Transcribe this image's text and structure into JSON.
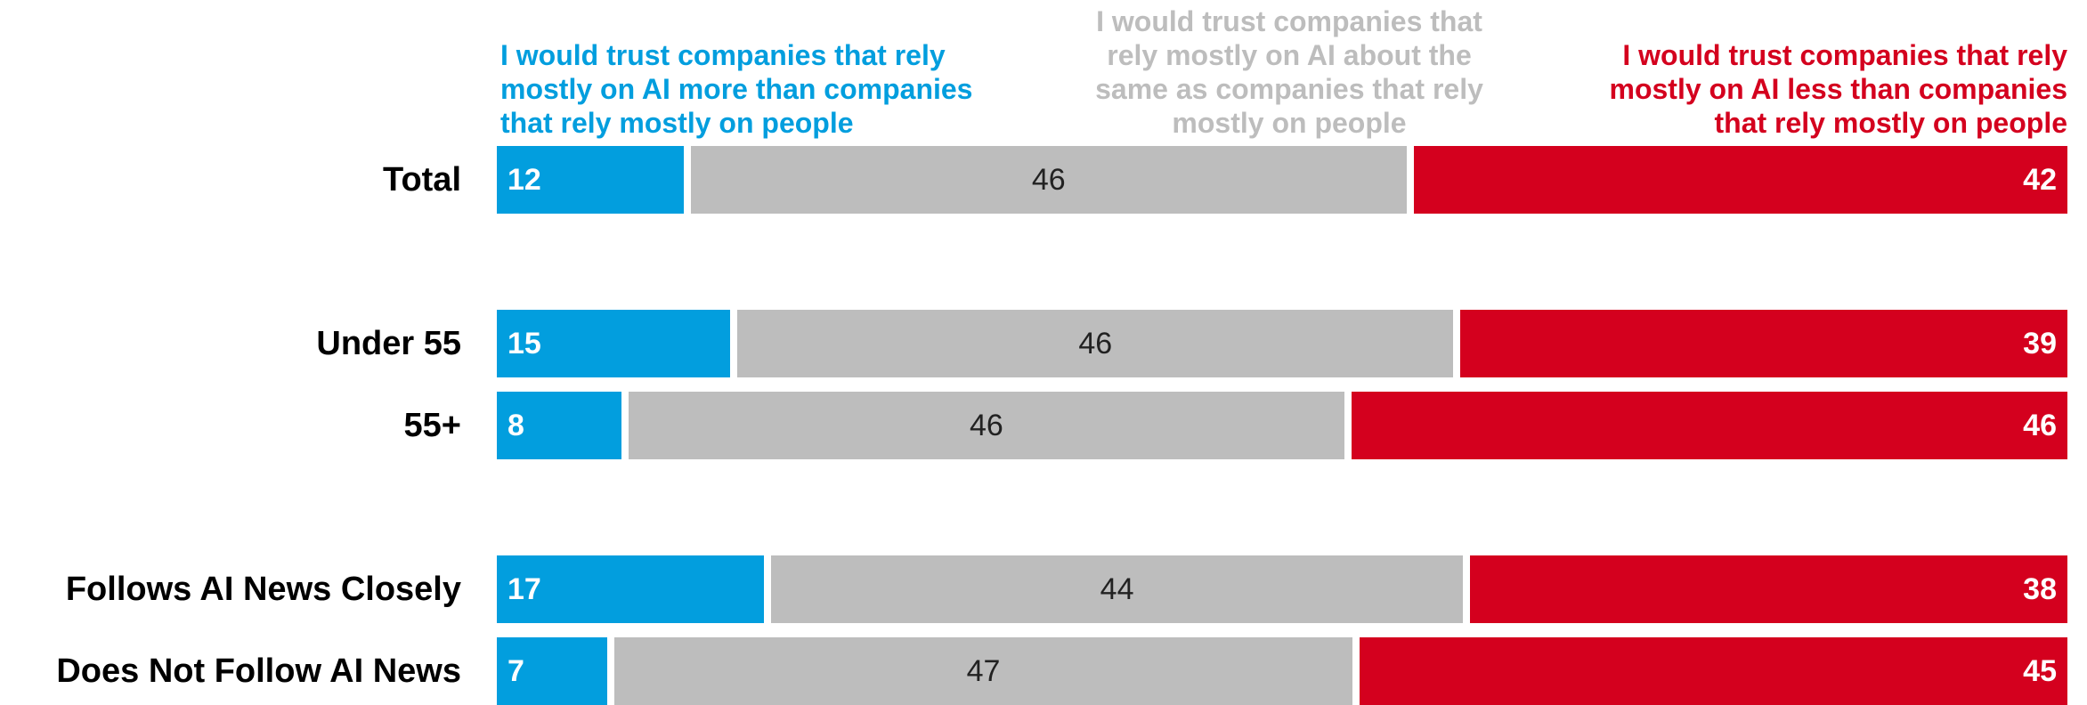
{
  "chart_data": {
    "type": "bar",
    "orientation": "horizontal",
    "stacked": true,
    "legend_position": "top",
    "colors": {
      "more": "#029ede",
      "same": "#bdbdbd",
      "less": "#d4001e"
    },
    "series": [
      {
        "key": "more",
        "name": [
          "I would trust companies that rely",
          "mostly on AI more than companies",
          "that rely mostly on people"
        ]
      },
      {
        "key": "same",
        "name": [
          "I would trust companies that",
          "rely mostly on AI about the",
          "same as companies that rely",
          "mostly on people"
        ]
      },
      {
        "key": "less",
        "name": [
          "I would trust companies that rely",
          "mostly on AI less than companies",
          "that rely mostly on people"
        ]
      }
    ],
    "rows": [
      {
        "label": "Total",
        "more": 12,
        "same": 46,
        "less": 42
      },
      {
        "label": "Under 55",
        "more": 15,
        "same": 46,
        "less": 39
      },
      {
        "label": "55+",
        "more": 8,
        "same": 46,
        "less": 46
      },
      {
        "label": "Follows AI News Closely",
        "more": 17,
        "same": 44,
        "less": 38
      },
      {
        "label": "Does Not Follow AI News",
        "more": 7,
        "same": 47,
        "less": 45
      }
    ]
  }
}
